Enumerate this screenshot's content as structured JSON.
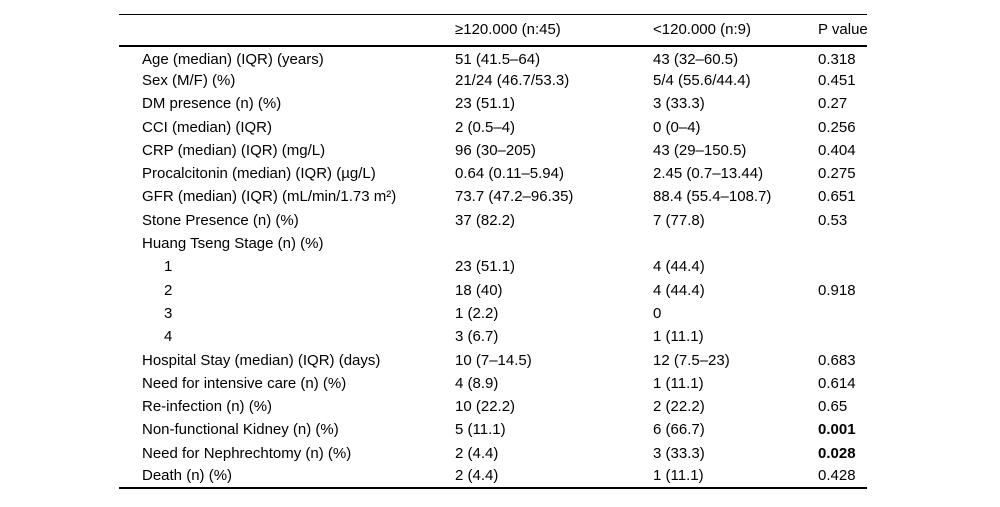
{
  "table": {
    "columns": {
      "label": "",
      "group1": "≥120.000 (n:45)",
      "group2": "<120.000 (n:9)",
      "p": "P value"
    },
    "rows": [
      {
        "label": "Age (median) (IQR) (years)",
        "c1": "51 (41.5–64)",
        "c2": "43 (32–60.5)",
        "p": "0.318"
      },
      {
        "label": "Sex (M/F) (%)",
        "c1": "21/24 (46.7/53.3)",
        "c2": "5/4 (55.6/44.4)",
        "p": "0.451"
      },
      {
        "label": "DM presence (n) (%)",
        "c1": "23 (51.1)",
        "c2": "3 (33.3)",
        "p": "0.27"
      },
      {
        "label": "CCI (median) (IQR)",
        "c1": "2 (0.5–4)",
        "c2": "0 (0–4)",
        "p": "0.256"
      },
      {
        "label": "CRP (median) (IQR) (mg/L)",
        "c1": "96 (30–205)",
        "c2": "43 (29–150.5)",
        "p": "0.404"
      },
      {
        "label": "Procalcitonin (median) (IQR) (µg/L)",
        "c1": "0.64 (0.11–5.94)",
        "c2": "2.45 (0.7–13.44)",
        "p": "0.275"
      },
      {
        "label": "GFR (median) (IQR) (mL/min/1.73 m²)",
        "c1": "73.7 (47.2–96.35)",
        "c2": "88.4 (55.4–108.7)",
        "p": "0.651"
      },
      {
        "label": "Stone Presence (n) (%)",
        "c1": "37 (82.2)",
        "c2": "7 (77.8)",
        "p": "0.53"
      },
      {
        "label": "Huang Tseng Stage (n) (%)",
        "c1": "",
        "c2": "",
        "p": ""
      },
      {
        "label": "1",
        "c1": "23 (51.1)",
        "c2": "4 (44.4)",
        "p": ""
      },
      {
        "label": "2",
        "c1": "18 (40)",
        "c2": "4 (44.4)",
        "p": "0.918"
      },
      {
        "label": "3",
        "c1": "1 (2.2)",
        "c2": "0",
        "p": ""
      },
      {
        "label": "4",
        "c1": "3 (6.7)",
        "c2": "1 (11.1)",
        "p": ""
      },
      {
        "label": "Hospital Stay (median) (IQR) (days)",
        "c1": "10 (7–14.5)",
        "c2": "12 (7.5–23)",
        "p": "0.683"
      },
      {
        "label": "Need for intensive care (n) (%)",
        "c1": "4 (8.9)",
        "c2": "1 (11.1)",
        "p": "0.614"
      },
      {
        "label": "Re-infection (n) (%)",
        "c1": "10 (22.2)",
        "c2": "2 (22.2)",
        "p": "0.65"
      },
      {
        "label": "Non-functional Kidney (n) (%)",
        "c1": "5 (11.1)",
        "c2": "6 (66.7)",
        "p": "0.001"
      },
      {
        "label": "Need for Nephrechtomy (n) (%)",
        "c1": "2 (4.4)",
        "c2": "3 (33.3)",
        "p": "0.028"
      },
      {
        "label": "Death (n) (%)",
        "c1": "2 (4.4)",
        "c2": "1 (11.1)",
        "p": "0.428"
      }
    ]
  }
}
